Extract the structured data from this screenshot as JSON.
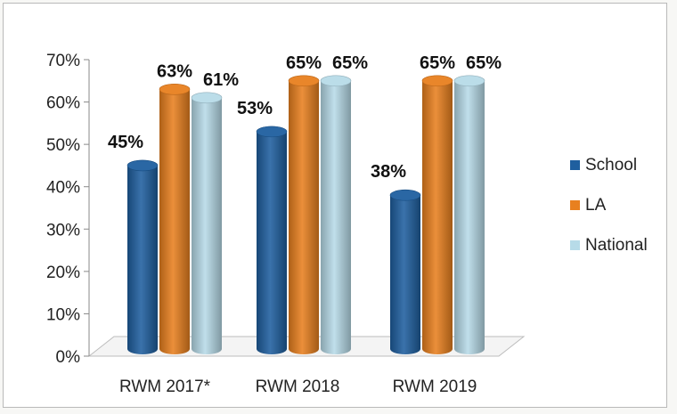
{
  "chart_data": {
    "type": "bar",
    "style": "3d-cylinder",
    "categories": [
      "RWM 2017*",
      "RWM 2018",
      "RWM 2019"
    ],
    "series": [
      {
        "name": "School",
        "values": [
          45,
          53,
          38
        ],
        "labels": [
          "45%",
          "53%",
          "38%"
        ],
        "color": "#1f5f9f"
      },
      {
        "name": "LA",
        "values": [
          63,
          65,
          65
        ],
        "labels": [
          "63%",
          "65%",
          "65%"
        ],
        "color": "#e8801f"
      },
      {
        "name": "National",
        "values": [
          61,
          65,
          65
        ],
        "labels": [
          "61%",
          "65%",
          "65%"
        ],
        "color": "#b7dbe8"
      }
    ],
    "y_ticks": [
      "0%",
      "10%",
      "20%",
      "30%",
      "40%",
      "50%",
      "60%",
      "70%"
    ],
    "ylim": [
      0,
      70
    ],
    "grid": false,
    "legend_position": "right"
  }
}
